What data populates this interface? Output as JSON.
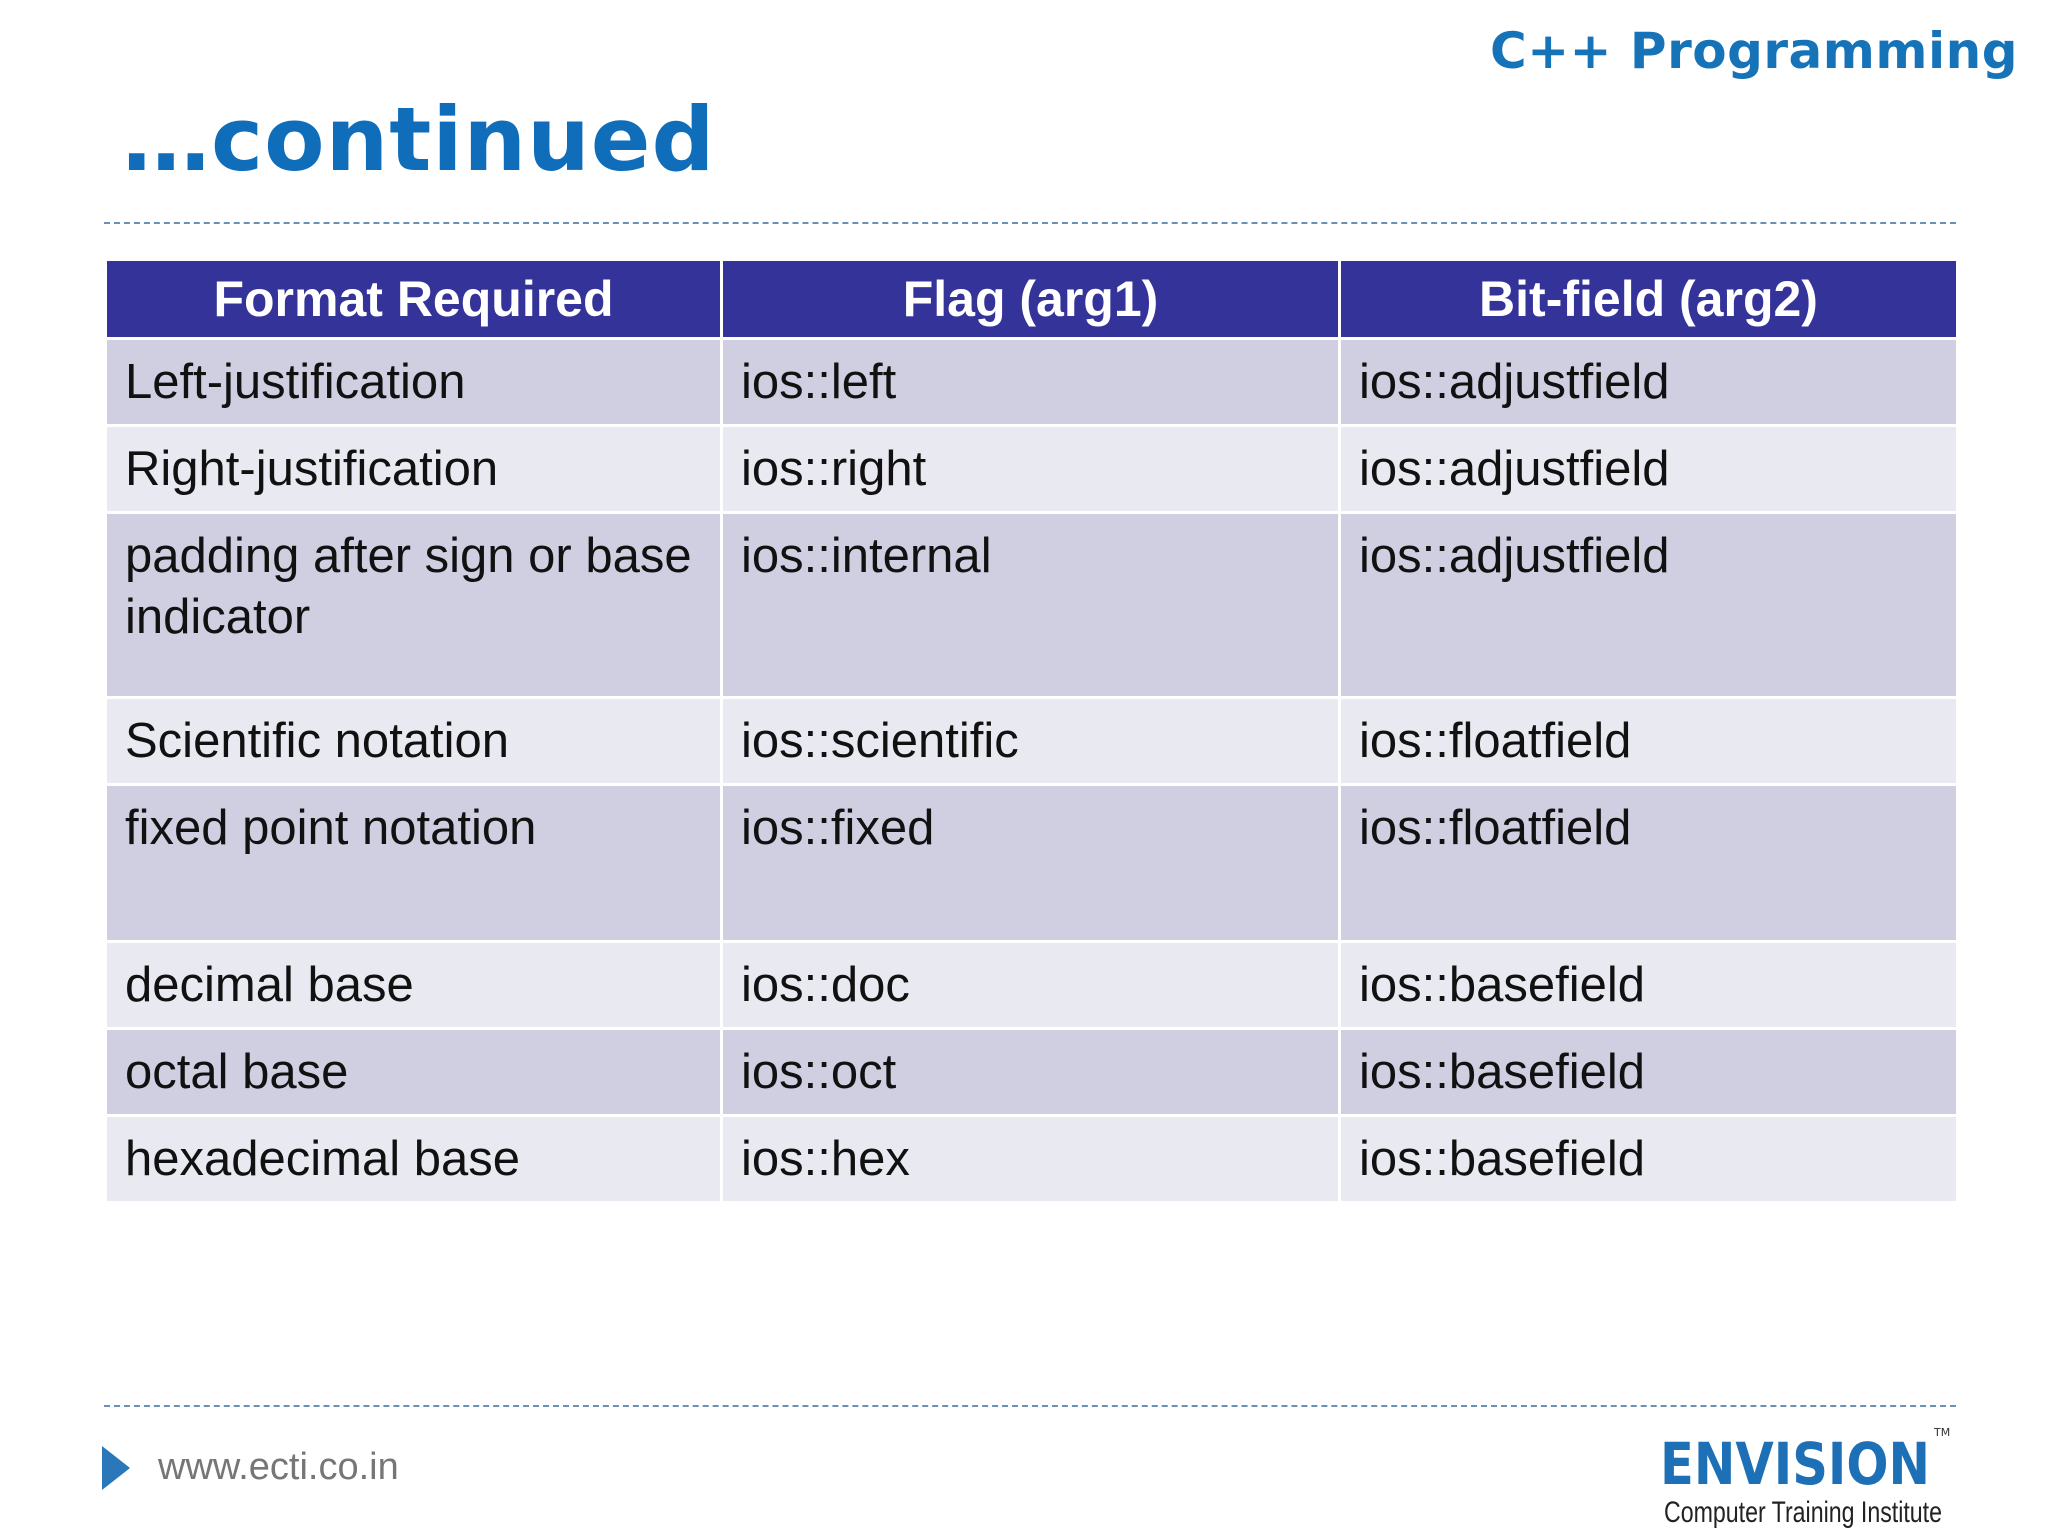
{
  "header": {
    "course_title": "C++ Programming",
    "slide_title": "…continued"
  },
  "table": {
    "columns": [
      "Format Required",
      "Flag (arg1)",
      "Bit-field (arg2)"
    ],
    "rows": [
      [
        "Left-justification",
        "ios::left",
        "ios::adjustfield"
      ],
      [
        "Right-justification",
        "ios::right",
        "ios::adjustfield"
      ],
      [
        "padding after sign or base indicator",
        "ios::internal",
        "ios::adjustfield"
      ],
      [
        "Scientific notation",
        "ios::scientific",
        "ios::floatfield"
      ],
      [
        "fixed point notation",
        "ios::fixed",
        "ios::floatfield"
      ],
      [
        "decimal base",
        "ios::doc",
        "ios::basefield"
      ],
      [
        "octal base",
        "ios::oct",
        "ios::basefield"
      ],
      [
        "hexadecimal base",
        "ios::hex",
        "ios::basefield"
      ]
    ]
  },
  "footer": {
    "url": "www.ecti.co.in",
    "logo": {
      "name": "ENVISION",
      "trademark": "TM",
      "tagline": "Computer Training Institute"
    }
  },
  "colors": {
    "title_blue": "#0f6dba",
    "header_bg": "#343399",
    "row_odd": "#d0cfe2",
    "row_even": "#e9e9f1"
  }
}
